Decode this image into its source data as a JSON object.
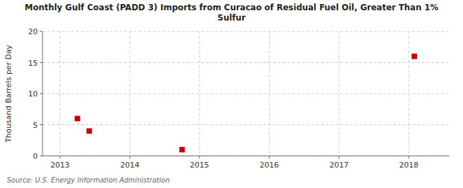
{
  "chart_data": {
    "type": "scatter",
    "title": "Monthly Gulf Coast (PADD 3) Imports from Curacao of Residual Fuel Oil, Greater Than 1%\nSulfur",
    "ylabel": "Thousand Barrels per Day",
    "annotation": "Source: U.S. Energy Information Administration",
    "x": [
      2013.25,
      2013.42,
      2014.75,
      2018.08
    ],
    "values": [
      6.0,
      4.0,
      1.0,
      16.0
    ],
    "color": "#cc0000",
    "marker": "square",
    "xlim": [
      2012.75,
      2018.58
    ],
    "ylim": [
      0,
      20
    ],
    "xticks": [
      2013,
      2014,
      2015,
      2016,
      2017,
      2018
    ],
    "yticks": [
      0,
      5,
      10,
      15,
      20
    ],
    "grid": true
  }
}
